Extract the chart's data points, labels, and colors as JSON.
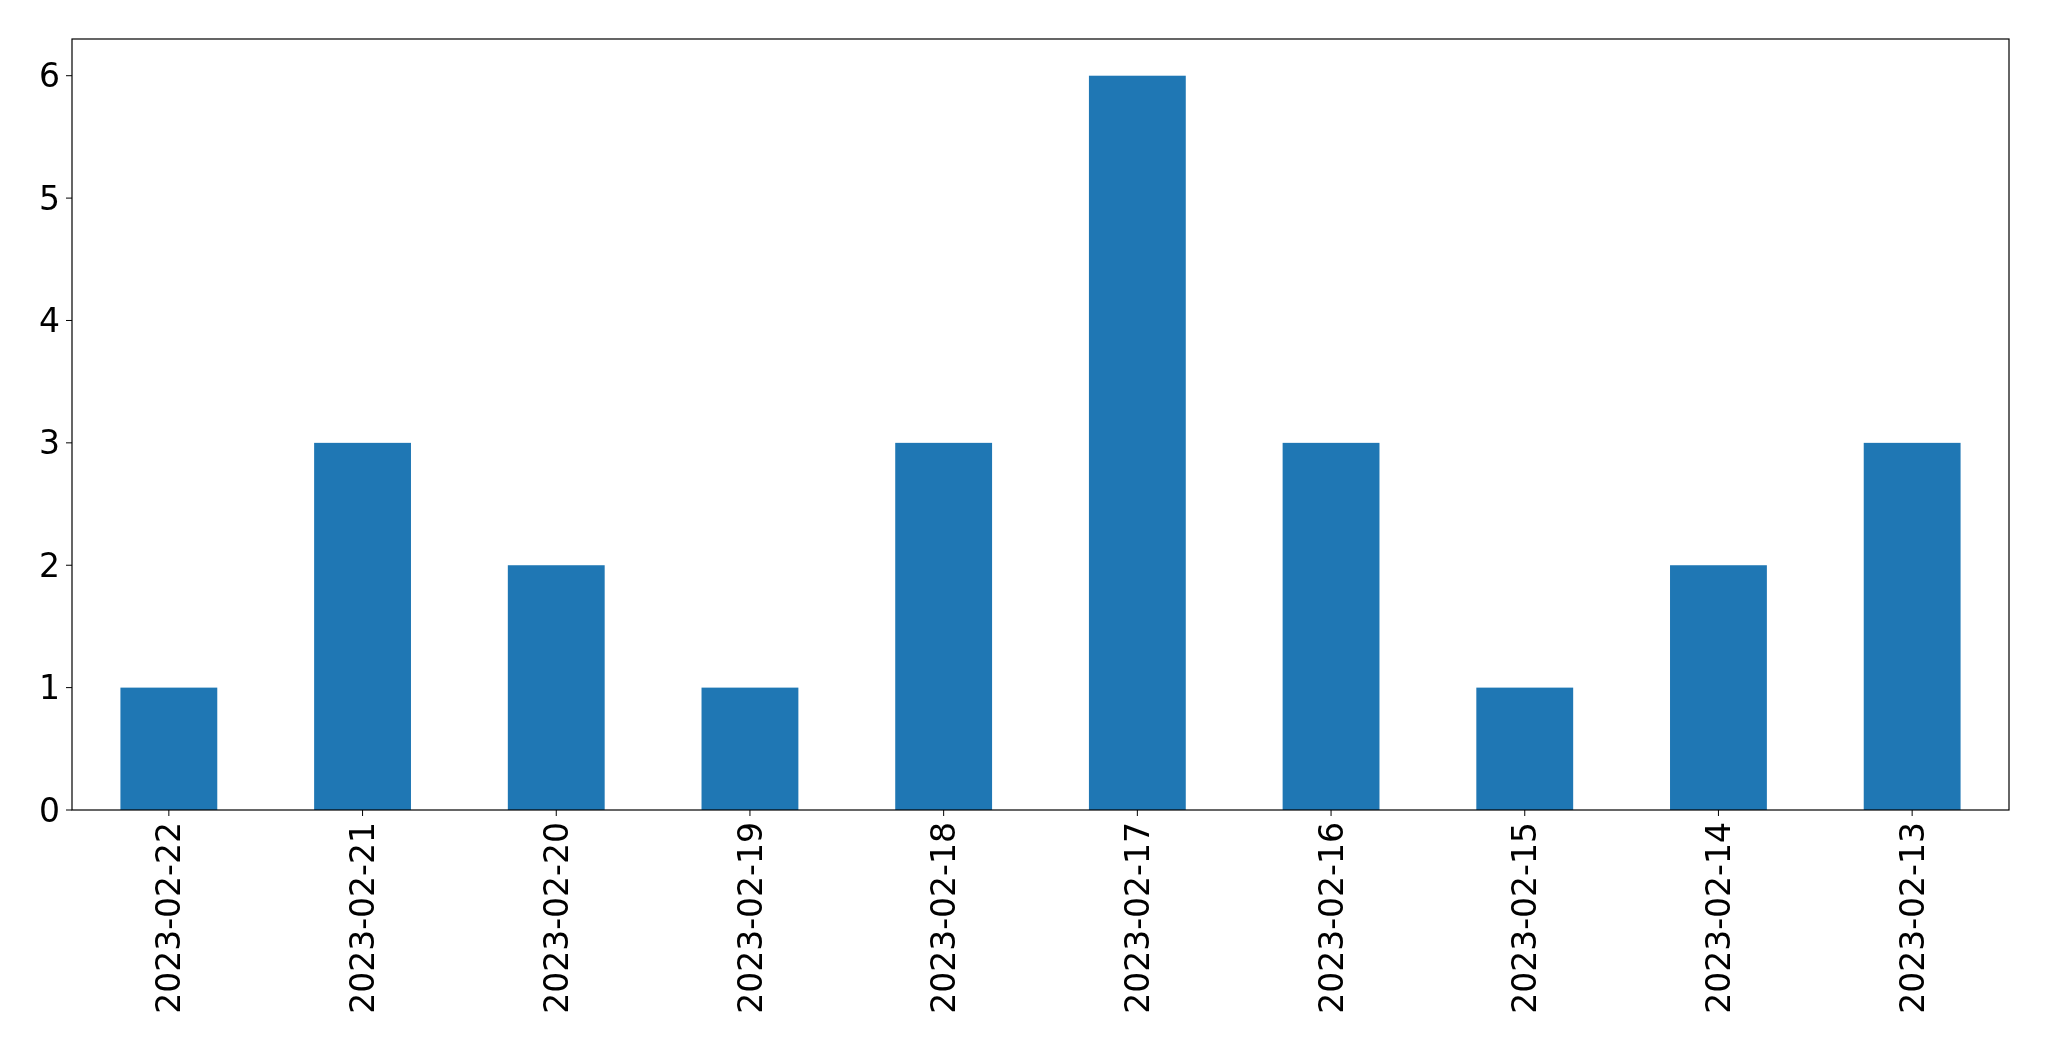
{
  "chart_data": {
    "type": "bar",
    "categories": [
      "2023-02-22",
      "2023-02-21",
      "2023-02-20",
      "2023-02-19",
      "2023-02-18",
      "2023-02-17",
      "2023-02-16",
      "2023-02-15",
      "2023-02-14",
      "2023-02-13"
    ],
    "values": [
      1,
      3,
      2,
      1,
      3,
      6,
      3,
      1,
      2,
      3
    ],
    "color": "#1f77b4",
    "ylim": [
      0,
      6.3
    ],
    "yticks": [
      0,
      1,
      2,
      3,
      4,
      5,
      6
    ],
    "grid": false
  }
}
